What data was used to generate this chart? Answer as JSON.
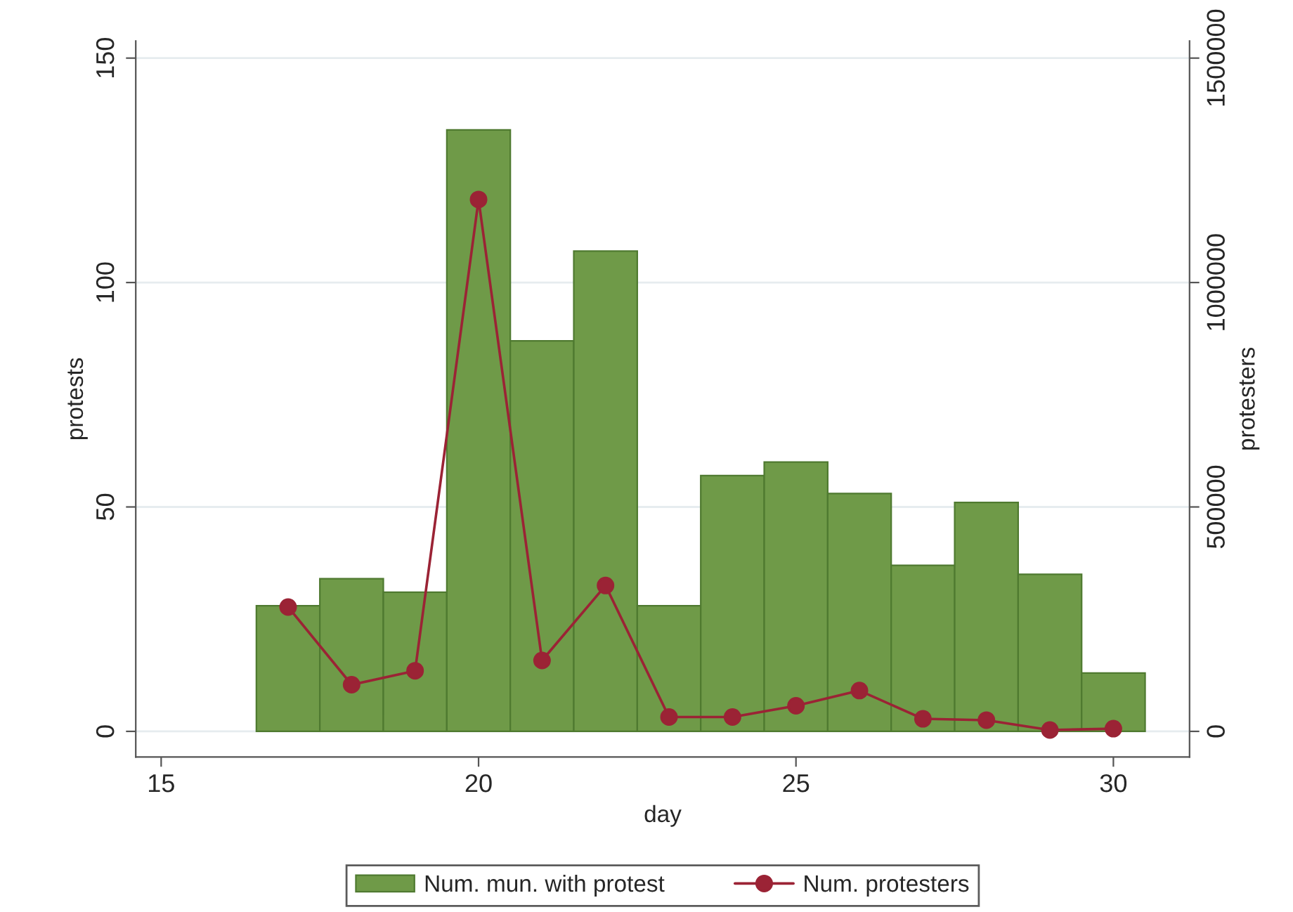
{
  "chart_data": {
    "type": "bar",
    "xlabel": "day",
    "ylabel": "protests",
    "y2label": "protesters",
    "x": [
      17,
      18,
      19,
      20,
      21,
      22,
      23,
      24,
      25,
      26,
      27,
      28,
      29,
      30
    ],
    "series": [
      {
        "name": "Num. mun. with protest",
        "color": "#6f9a48",
        "values": [
          28,
          34,
          31,
          134,
          87,
          107,
          28,
          57,
          60,
          53,
          37,
          51,
          35,
          13
        ]
      },
      {
        "name": "Num. protesters",
        "type": "line",
        "axis": "y2",
        "color": "#9b2335",
        "marker": "circle",
        "values": [
          277000,
          104000,
          135000,
          1185000,
          158000,
          325000,
          32000,
          32000,
          57000,
          91000,
          28000,
          25000,
          3000,
          6000
        ]
      }
    ],
    "xlim": [
      14.6,
      31.2
    ],
    "xticks": [
      15,
      20,
      25,
      30
    ],
    "ylim": [
      -5.7,
      153.8
    ],
    "yticks": [
      0,
      50,
      100,
      150
    ],
    "y2lim": [
      -57000,
      1538000
    ],
    "y2ticks": [
      0,
      500000,
      1000000,
      1500000
    ],
    "grid": "y",
    "legend": "bottom"
  }
}
